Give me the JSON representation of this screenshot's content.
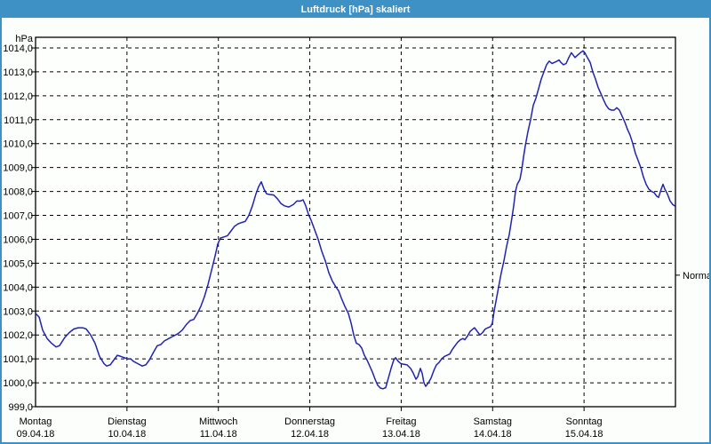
{
  "window": {
    "title": "Luftdruck [hPa] skaliert"
  },
  "colors": {
    "titlebar_bg": "#3d91c5",
    "window_border": "#3d91c5",
    "content_bg": "#fbfefb",
    "plot_bg": "#fdfffd",
    "line": "#2222b2",
    "grid": "#000000",
    "frame": "#000000",
    "text": "#000000",
    "normal_text": "#404040",
    "title_text": "#ffffff"
  },
  "chart_data": {
    "type": "line",
    "title": "Luftdruck [hPa] skaliert",
    "unit_label": "hPa",
    "grid": "dashed",
    "y_axis": {
      "min": 999.0,
      "max": 1014.0,
      "step": 1.0,
      "tick_labels": [
        "999,0",
        "1000,0",
        "1001,0",
        "1002,0",
        "1003,0",
        "1004,0",
        "1005,0",
        "1006,0",
        "1007,0",
        "1008,0",
        "1009,0",
        "1010,0",
        "1011,0",
        "1012,0",
        "1013,0",
        "1014,0"
      ]
    },
    "x_axis": {
      "days": [
        {
          "name": "Montag",
          "date": "09.04.18"
        },
        {
          "name": "Dienstag",
          "date": "10.04.18"
        },
        {
          "name": "Mittwoch",
          "date": "11.04.18"
        },
        {
          "name": "Donnerstag",
          "date": "12.04.18"
        },
        {
          "name": "Freitag",
          "date": "13.04.18"
        },
        {
          "name": "Samstag",
          "date": "14.04.18"
        },
        {
          "name": "Sonntag",
          "date": "15.04.18"
        }
      ]
    },
    "annotations": [
      {
        "label": "Normal",
        "value": 1004.5,
        "side": "right"
      }
    ],
    "series": [
      {
        "name": "Luftdruck",
        "x_unit": "days_since_monday",
        "y_unit": "hPa",
        "points": [
          [
            0,
            1002.9
          ],
          [
            0.039,
            1002.75
          ],
          [
            0.078,
            1002.2
          ],
          [
            0.126,
            1001.85
          ],
          [
            0.175,
            1001.65
          ],
          [
            0.224,
            1001.5
          ],
          [
            0.262,
            1001.55
          ],
          [
            0.321,
            1001.9
          ],
          [
            0.369,
            1002.1
          ],
          [
            0.418,
            1002.25
          ],
          [
            0.467,
            1002.3
          ],
          [
            0.515,
            1002.3
          ],
          [
            0.554,
            1002.25
          ],
          [
            0.603,
            1002.0
          ],
          [
            0.651,
            1001.65
          ],
          [
            0.7,
            1001.1
          ],
          [
            0.749,
            1000.8
          ],
          [
            0.778,
            1000.7
          ],
          [
            0.817,
            1000.75
          ],
          [
            0.856,
            1000.95
          ],
          [
            0.894,
            1001.15
          ],
          [
            0.933,
            1001.1
          ],
          [
            0.972,
            1001.05
          ],
          [
            1.001,
            1001.0
          ],
          [
            1.04,
            1001.0
          ],
          [
            1.069,
            1000.9
          ],
          [
            1.118,
            1000.8
          ],
          [
            1.167,
            1000.7
          ],
          [
            1.206,
            1000.75
          ],
          [
            1.244,
            1000.95
          ],
          [
            1.293,
            1001.3
          ],
          [
            1.332,
            1001.55
          ],
          [
            1.371,
            1001.6
          ],
          [
            1.41,
            1001.75
          ],
          [
            1.458,
            1001.85
          ],
          [
            1.507,
            1001.95
          ],
          [
            1.556,
            1002.05
          ],
          [
            1.604,
            1002.2
          ],
          [
            1.653,
            1002.45
          ],
          [
            1.692,
            1002.6
          ],
          [
            1.731,
            1002.65
          ],
          [
            1.769,
            1002.9
          ],
          [
            1.808,
            1003.2
          ],
          [
            1.847,
            1003.6
          ],
          [
            1.886,
            1004.1
          ],
          [
            1.925,
            1004.7
          ],
          [
            1.964,
            1005.3
          ],
          [
            1.993,
            1005.8
          ],
          [
            2.022,
            1006.05
          ],
          [
            2.061,
            1006.1
          ],
          [
            2.1,
            1006.15
          ],
          [
            2.139,
            1006.35
          ],
          [
            2.178,
            1006.55
          ],
          [
            2.217,
            1006.65
          ],
          [
            2.256,
            1006.7
          ],
          [
            2.294,
            1006.75
          ],
          [
            2.333,
            1007.0
          ],
          [
            2.372,
            1007.4
          ],
          [
            2.411,
            1007.9
          ],
          [
            2.44,
            1008.2
          ],
          [
            2.469,
            1008.4
          ],
          [
            2.499,
            1008.1
          ],
          [
            2.528,
            1007.9
          ],
          [
            2.567,
            1007.87
          ],
          [
            2.606,
            1007.85
          ],
          [
            2.644,
            1007.7
          ],
          [
            2.683,
            1007.5
          ],
          [
            2.722,
            1007.4
          ],
          [
            2.771,
            1007.35
          ],
          [
            2.819,
            1007.45
          ],
          [
            2.858,
            1007.6
          ],
          [
            2.897,
            1007.6
          ],
          [
            2.926,
            1007.65
          ],
          [
            2.956,
            1007.4
          ],
          [
            2.985,
            1007.05
          ],
          [
            3.014,
            1006.8
          ],
          [
            3.053,
            1006.4
          ],
          [
            3.092,
            1006.0
          ],
          [
            3.131,
            1005.5
          ],
          [
            3.169,
            1005.1
          ],
          [
            3.208,
            1004.6
          ],
          [
            3.247,
            1004.25
          ],
          [
            3.286,
            1004.0
          ],
          [
            3.315,
            1003.85
          ],
          [
            3.344,
            1003.55
          ],
          [
            3.383,
            1003.2
          ],
          [
            3.422,
            1002.9
          ],
          [
            3.451,
            1002.5
          ],
          [
            3.481,
            1002.0
          ],
          [
            3.51,
            1001.65
          ],
          [
            3.539,
            1001.6
          ],
          [
            3.568,
            1001.45
          ],
          [
            3.597,
            1001.15
          ],
          [
            3.626,
            1000.95
          ],
          [
            3.656,
            1000.7
          ],
          [
            3.685,
            1000.45
          ],
          [
            3.714,
            1000.15
          ],
          [
            3.743,
            999.9
          ],
          [
            3.772,
            999.78
          ],
          [
            3.801,
            999.75
          ],
          [
            3.831,
            999.8
          ],
          [
            3.86,
            1000.2
          ],
          [
            3.889,
            1000.6
          ],
          [
            3.918,
            1000.95
          ],
          [
            3.938,
            1001.05
          ],
          [
            3.967,
            1000.9
          ],
          [
            3.996,
            1000.8
          ],
          [
            4.025,
            1000.78
          ],
          [
            4.064,
            1000.75
          ],
          [
            4.103,
            1000.6
          ],
          [
            4.132,
            1000.4
          ],
          [
            4.161,
            1000.15
          ],
          [
            4.181,
            1000.25
          ],
          [
            4.21,
            1000.6
          ],
          [
            4.229,
            1000.4
          ],
          [
            4.249,
            1000.0
          ],
          [
            4.268,
            999.85
          ],
          [
            4.297,
            1000.0
          ],
          [
            4.326,
            1000.2
          ],
          [
            4.356,
            1000.5
          ],
          [
            4.385,
            1000.75
          ],
          [
            4.414,
            1000.85
          ],
          [
            4.443,
            1001.0
          ],
          [
            4.472,
            1001.1
          ],
          [
            4.501,
            1001.15
          ],
          [
            4.531,
            1001.2
          ],
          [
            4.56,
            1001.4
          ],
          [
            4.589,
            1001.55
          ],
          [
            4.618,
            1001.7
          ],
          [
            4.647,
            1001.8
          ],
          [
            4.676,
            1001.85
          ],
          [
            4.696,
            1001.8
          ],
          [
            4.725,
            1001.95
          ],
          [
            4.754,
            1002.15
          ],
          [
            4.783,
            1002.25
          ],
          [
            4.803,
            1002.3
          ],
          [
            4.832,
            1002.15
          ],
          [
            4.861,
            1002.0
          ],
          [
            4.89,
            1002.1
          ],
          [
            4.919,
            1002.25
          ],
          [
            4.949,
            1002.3
          ],
          [
            4.978,
            1002.35
          ],
          [
            4.997,
            1002.5
          ],
          [
            5.017,
            1003.0
          ],
          [
            5.036,
            1003.4
          ],
          [
            5.065,
            1004.0
          ],
          [
            5.094,
            1004.6
          ],
          [
            5.124,
            1005.1
          ],
          [
            5.153,
            1005.7
          ],
          [
            5.182,
            1006.2
          ],
          [
            5.211,
            1006.9
          ],
          [
            5.231,
            1007.4
          ],
          [
            5.25,
            1008.0
          ],
          [
            5.269,
            1008.3
          ],
          [
            5.299,
            1008.5
          ],
          [
            5.318,
            1008.9
          ],
          [
            5.337,
            1009.4
          ],
          [
            5.357,
            1009.9
          ],
          [
            5.386,
            1010.5
          ],
          [
            5.415,
            1011.0
          ],
          [
            5.444,
            1011.6
          ],
          [
            5.474,
            1011.9
          ],
          [
            5.503,
            1012.3
          ],
          [
            5.532,
            1012.7
          ],
          [
            5.561,
            1013.0
          ],
          [
            5.59,
            1013.3
          ],
          [
            5.619,
            1013.45
          ],
          [
            5.649,
            1013.35
          ],
          [
            5.678,
            1013.4
          ],
          [
            5.707,
            1013.45
          ],
          [
            5.726,
            1013.5
          ],
          [
            5.746,
            1013.4
          ],
          [
            5.775,
            1013.3
          ],
          [
            5.804,
            1013.35
          ],
          [
            5.833,
            1013.6
          ],
          [
            5.862,
            1013.8
          ],
          [
            5.882,
            1013.7
          ],
          [
            5.901,
            1013.6
          ],
          [
            5.93,
            1013.7
          ],
          [
            5.96,
            1013.8
          ],
          [
            5.989,
            1013.88
          ],
          [
            6.008,
            1013.8
          ],
          [
            6.037,
            1013.6
          ],
          [
            6.067,
            1013.4
          ],
          [
            6.096,
            1013.0
          ],
          [
            6.125,
            1012.7
          ],
          [
            6.154,
            1012.35
          ],
          [
            6.183,
            1012.1
          ],
          [
            6.212,
            1011.85
          ],
          [
            6.242,
            1011.6
          ],
          [
            6.271,
            1011.45
          ],
          [
            6.3,
            1011.4
          ],
          [
            6.329,
            1011.4
          ],
          [
            6.358,
            1011.5
          ],
          [
            6.387,
            1011.4
          ],
          [
            6.417,
            1011.15
          ],
          [
            6.446,
            1010.9
          ],
          [
            6.475,
            1010.6
          ],
          [
            6.504,
            1010.35
          ],
          [
            6.533,
            1010.0
          ],
          [
            6.562,
            1009.6
          ],
          [
            6.592,
            1009.3
          ],
          [
            6.621,
            1009.0
          ],
          [
            6.65,
            1008.6
          ],
          [
            6.679,
            1008.3
          ],
          [
            6.708,
            1008.1
          ],
          [
            6.738,
            1008.0
          ],
          [
            6.767,
            1007.95
          ],
          [
            6.796,
            1007.8
          ],
          [
            6.815,
            1007.75
          ],
          [
            6.844,
            1008.1
          ],
          [
            6.864,
            1008.3
          ],
          [
            6.883,
            1008.1
          ],
          [
            6.912,
            1007.9
          ],
          [
            6.942,
            1007.6
          ],
          [
            6.971,
            1007.45
          ],
          [
            6.99,
            1007.4
          ]
        ]
      }
    ]
  }
}
